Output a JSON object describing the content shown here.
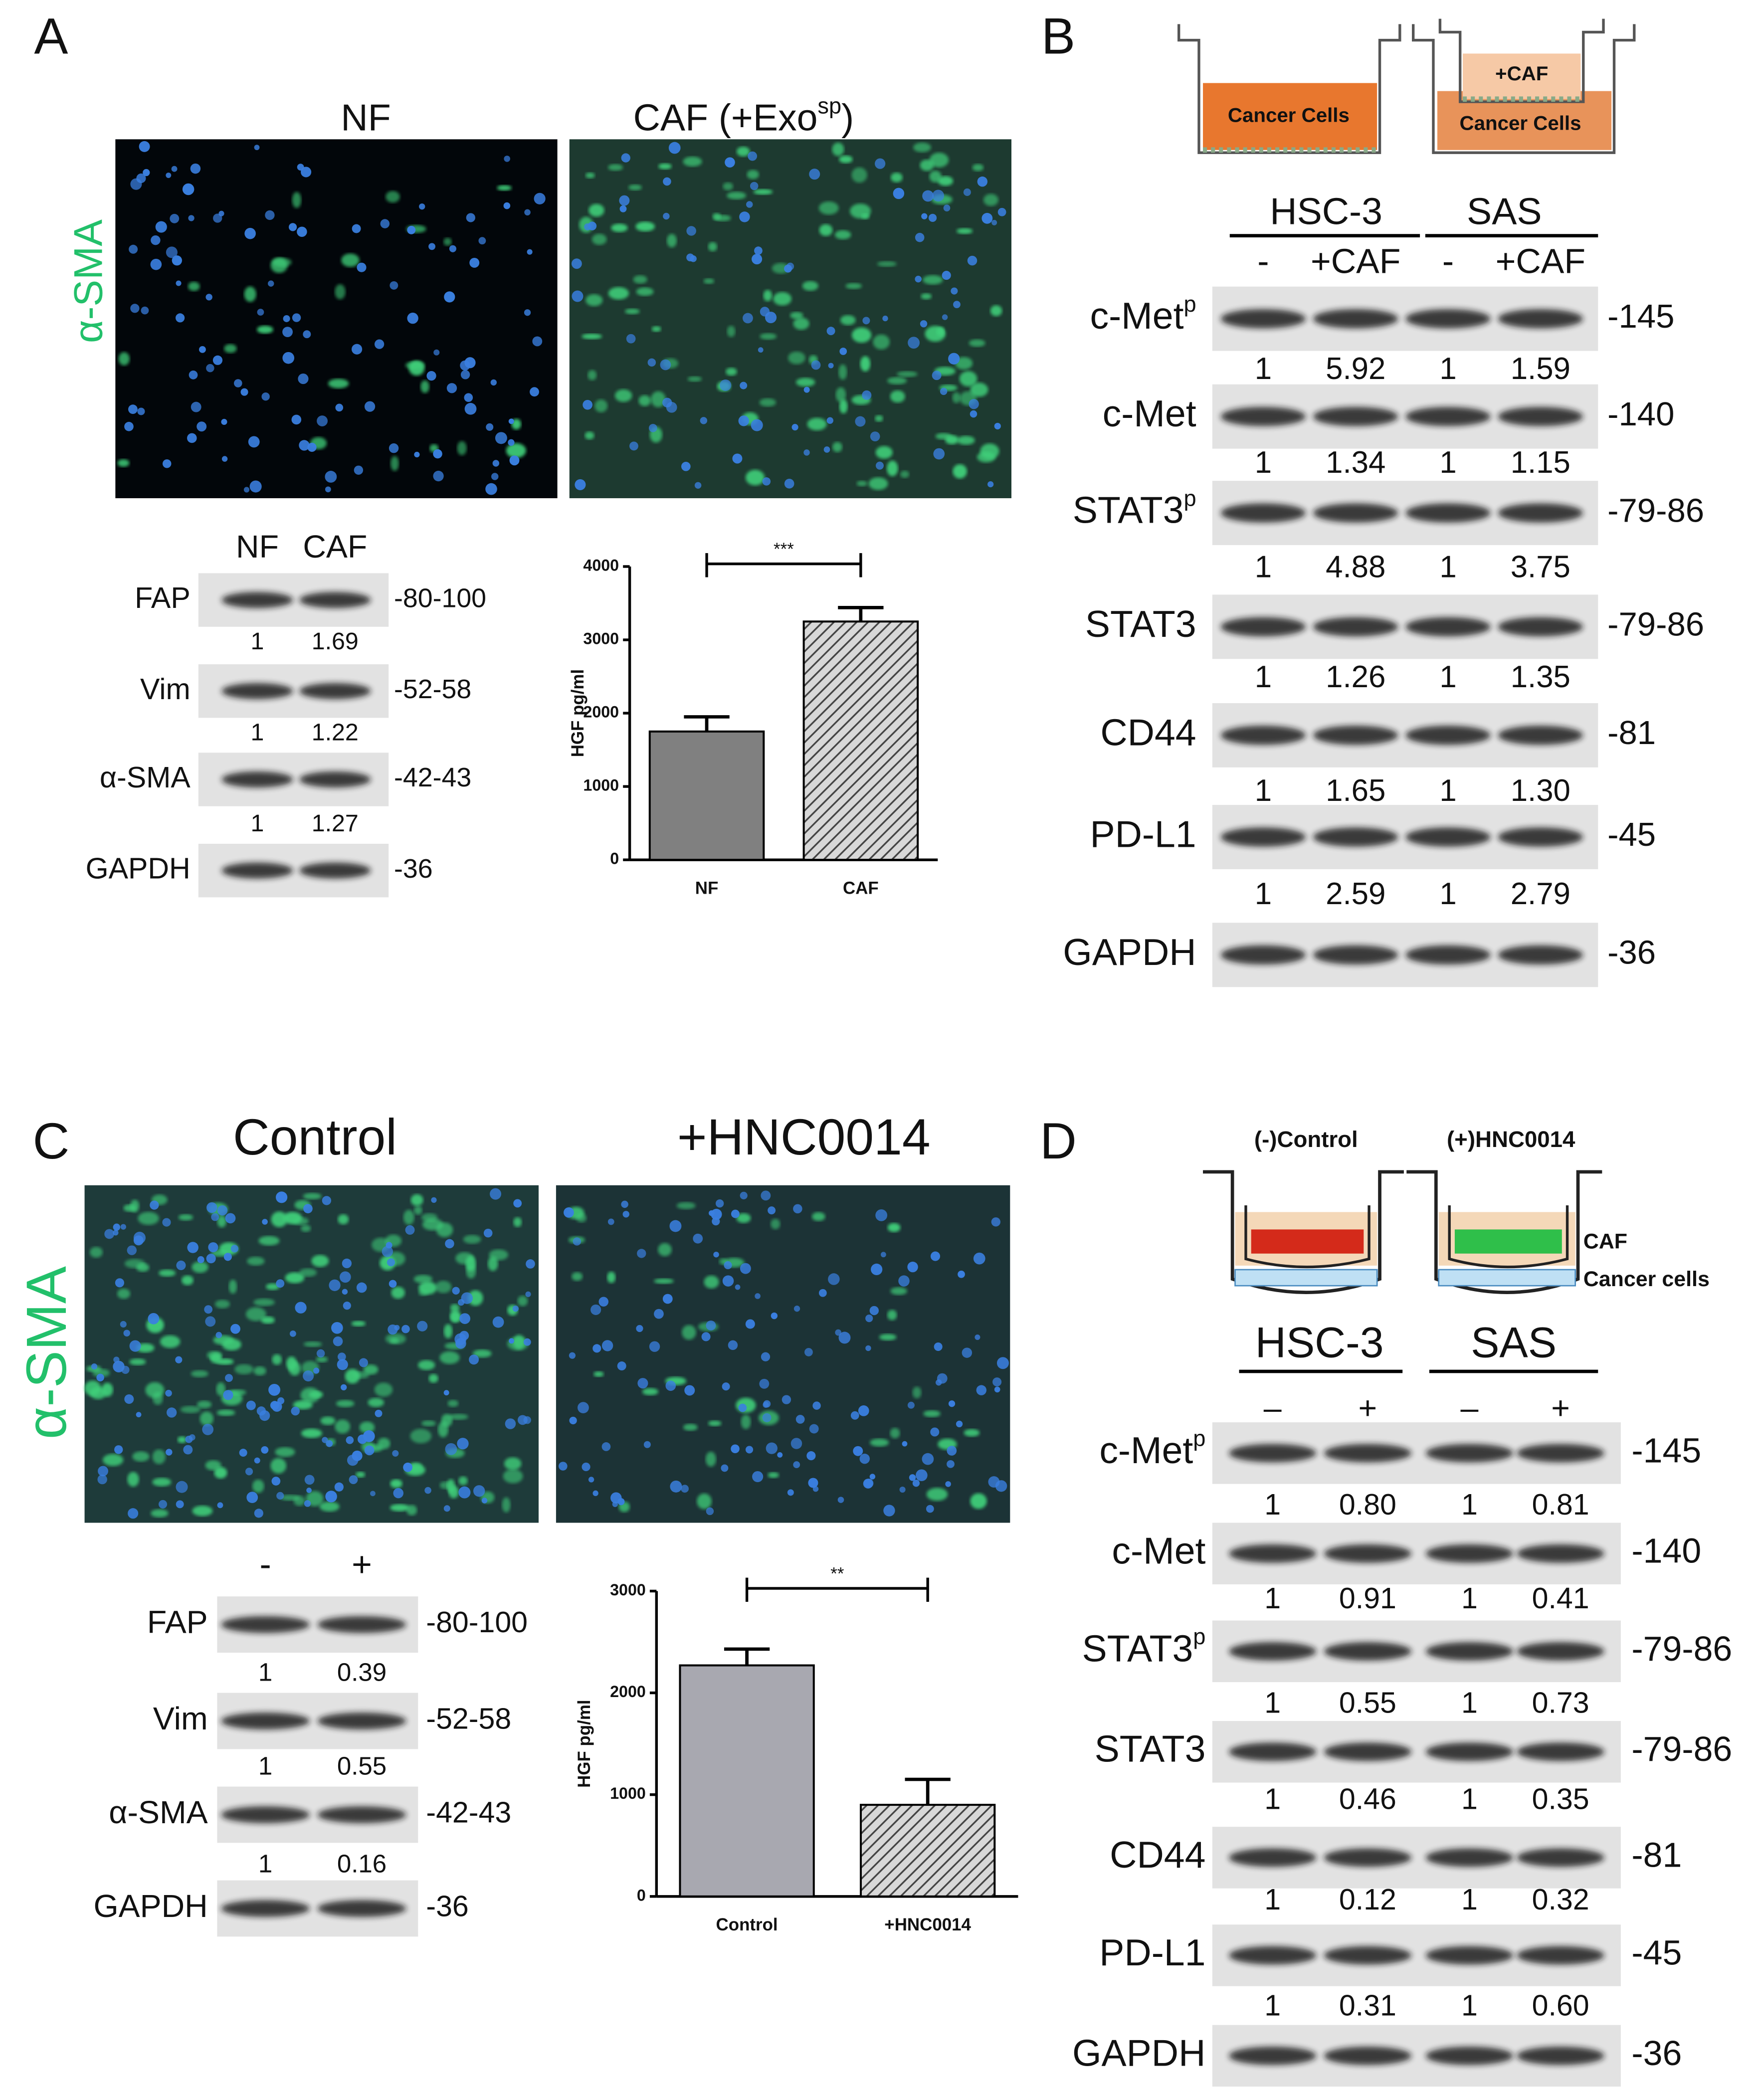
{
  "panels": [
    {
      "label": "A",
      "image_titles": [
        {
          "text": "NF"
        },
        {
          "text": "CAF (+Exo",
          "sup": "sp",
          "after": ")"
        }
      ],
      "stain": "α-SMA",
      "blot": {
        "lanes": [
          "NF",
          "CAF"
        ],
        "rows": [
          {
            "name": "FAP",
            "quant": [
              "1",
              "1.69"
            ],
            "mw": "-80-100"
          },
          {
            "name": "Vim",
            "quant": [
              "1",
              "1.22"
            ],
            "mw": "-52-58"
          },
          {
            "name": "α-SMA",
            "quant": [
              "1",
              "1.27"
            ],
            "mw": "-42-43"
          },
          {
            "name": "GAPDH",
            "mw": "-36"
          }
        ]
      }
    },
    {
      "label": "B",
      "diagram_labels": [
        "Cancer Cells",
        "+CAF",
        "Cancer Cells"
      ],
      "blot": {
        "groups": [
          "HSC-3",
          "SAS"
        ],
        "lanes": [
          "-",
          "+CAF",
          "-",
          "+CAF"
        ],
        "rows": [
          {
            "name": "c-Met",
            "sup": "p",
            "quant": [
              "1",
              "5.92",
              "1",
              "1.59"
            ],
            "mw": "-145"
          },
          {
            "name": "c-Met",
            "quant": [
              "1",
              "1.34",
              "1",
              "1.15"
            ],
            "mw": "-140"
          },
          {
            "name": "STAT3",
            "sup": "p",
            "quant": [
              "1",
              "4.88",
              "1",
              "3.75"
            ],
            "mw": "-79-86"
          },
          {
            "name": "STAT3",
            "quant": [
              "1",
              "1.26",
              "1",
              "1.35"
            ],
            "mw": "-79-86"
          },
          {
            "name": "CD44",
            "quant": [
              "1",
              "1.65",
              "1",
              "1.30"
            ],
            "mw": "-81"
          },
          {
            "name": "PD-L1",
            "quant": [
              "1",
              "2.59",
              "1",
              "2.79"
            ],
            "mw": "-45"
          },
          {
            "name": "GAPDH",
            "mw": "-36"
          }
        ]
      }
    },
    {
      "label": "C",
      "image_titles": [
        {
          "text": "Control"
        },
        {
          "text": "+HNC0014"
        }
      ],
      "stain": "α-SMA",
      "blot": {
        "lanes": [
          "-",
          "+"
        ],
        "rows": [
          {
            "name": "FAP",
            "quant": [
              "1",
              "0.39"
            ],
            "mw": "-80-100"
          },
          {
            "name": "Vim",
            "quant": [
              "1",
              "0.55"
            ],
            "mw": "-52-58"
          },
          {
            "name": "α-SMA",
            "quant": [
              "1",
              "0.16"
            ],
            "mw": "-42-43"
          },
          {
            "name": "GAPDH",
            "mw": "-36"
          }
        ]
      }
    },
    {
      "label": "D",
      "diagram_labels": [
        "(-)Control",
        "(+)HNC0014",
        "CAF",
        "Cancer cells"
      ],
      "blot": {
        "groups": [
          "HSC-3",
          "SAS"
        ],
        "lanes": [
          "–",
          "+",
          "–",
          "+"
        ],
        "rows": [
          {
            "name": "c-Met",
            "sup": "p",
            "quant": [
              "1",
              "0.80",
              "1",
              "0.81"
            ],
            "mw": "-145"
          },
          {
            "name": "c-Met",
            "quant": [
              "1",
              "0.91",
              "1",
              "0.41"
            ],
            "mw": "-140"
          },
          {
            "name": "STAT3",
            "sup": "p",
            "quant": [
              "1",
              "0.55",
              "1",
              "0.73"
            ],
            "mw": "-79-86"
          },
          {
            "name": "STAT3",
            "quant": [
              "1",
              "0.46",
              "1",
              "0.35"
            ],
            "mw": "-79-86"
          },
          {
            "name": "CD44",
            "quant": [
              "1",
              "0.12",
              "1",
              "0.32"
            ],
            "mw": "-81"
          },
          {
            "name": "PD-L1",
            "quant": [
              "1",
              "0.31",
              "1",
              "0.60"
            ],
            "mw": "-45"
          },
          {
            "name": "GAPDH",
            "mw": "-36"
          }
        ]
      }
    }
  ],
  "chart_data": [
    {
      "type": "bar",
      "y_label": "HGF pg/ml",
      "categories": [
        "NF",
        "CAF"
      ],
      "values": [
        1750,
        3250
      ],
      "errors": [
        200,
        190
      ],
      "colors": [
        "#808080",
        "#9a9a9a"
      ],
      "hatched": [
        false,
        true
      ],
      "ylim": [
        0,
        4000
      ],
      "yticks": [
        0,
        1000,
        2000,
        3000,
        4000
      ],
      "significance": "***"
    },
    {
      "type": "bar",
      "y_label": "HGF pg/ml",
      "categories": [
        "Control",
        "+HNC0014"
      ],
      "values": [
        2270,
        900
      ],
      "errors": [
        160,
        250
      ],
      "colors": [
        "#a8a8b0",
        "#9a9a9a"
      ],
      "hatched": [
        false,
        true
      ],
      "ylim": [
        0,
        3000
      ],
      "yticks": [
        0,
        1000,
        2000,
        3000
      ],
      "significance": "**"
    }
  ]
}
